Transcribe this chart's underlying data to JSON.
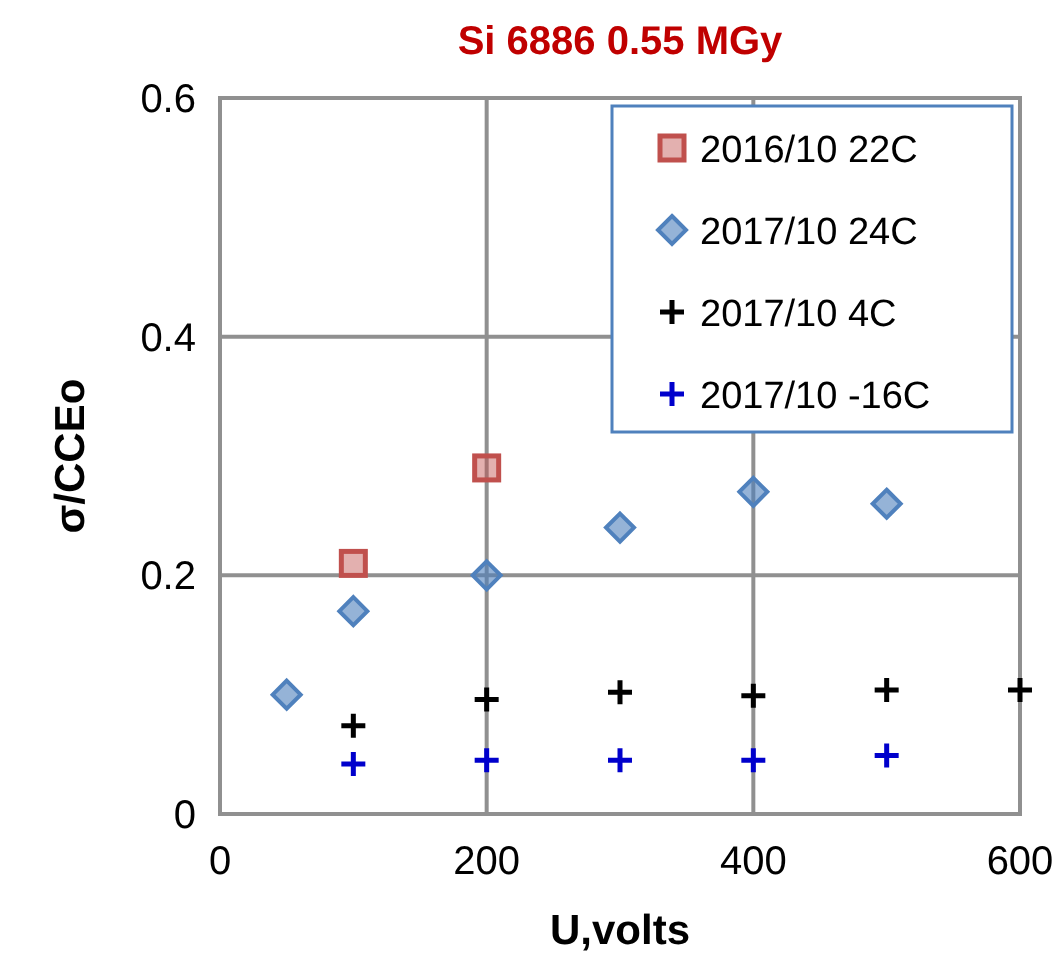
{
  "chart_data": {
    "type": "scatter",
    "title": "Si 6886 0.55 MGy",
    "xlabel": "U,volts",
    "ylabel": "σ/CCEo",
    "xlim": [
      0,
      600
    ],
    "xticks": [
      0,
      200,
      400,
      600
    ],
    "ylim": [
      0,
      0.6
    ],
    "yticks": [
      0,
      0.2,
      0.4,
      0.6
    ],
    "grid": true,
    "legend": "top right",
    "series": [
      {
        "name": "2016/10 22C",
        "color": "#c0504d",
        "marker": "square",
        "x": [
          100,
          200
        ],
        "values": [
          0.21,
          0.29
        ]
      },
      {
        "name": "2017/10 24C",
        "color": "#4f81bd",
        "marker": "diamond",
        "x": [
          50,
          100,
          200,
          300,
          400,
          500
        ],
        "values": [
          0.1,
          0.17,
          0.2,
          0.24,
          0.27,
          0.26
        ]
      },
      {
        "name": "2017/10 4C",
        "color": "#000000",
        "marker": "cross",
        "x": [
          100,
          200,
          300,
          400,
          500,
          600
        ],
        "values": [
          0.074,
          0.096,
          0.102,
          0.099,
          0.104,
          0.104
        ]
      },
      {
        "name": "2017/10 -16C",
        "color": "#0000cc",
        "marker": "cross",
        "x": [
          100,
          200,
          300,
          400,
          500
        ],
        "values": [
          0.042,
          0.045,
          0.045,
          0.045,
          0.049
        ]
      }
    ]
  }
}
